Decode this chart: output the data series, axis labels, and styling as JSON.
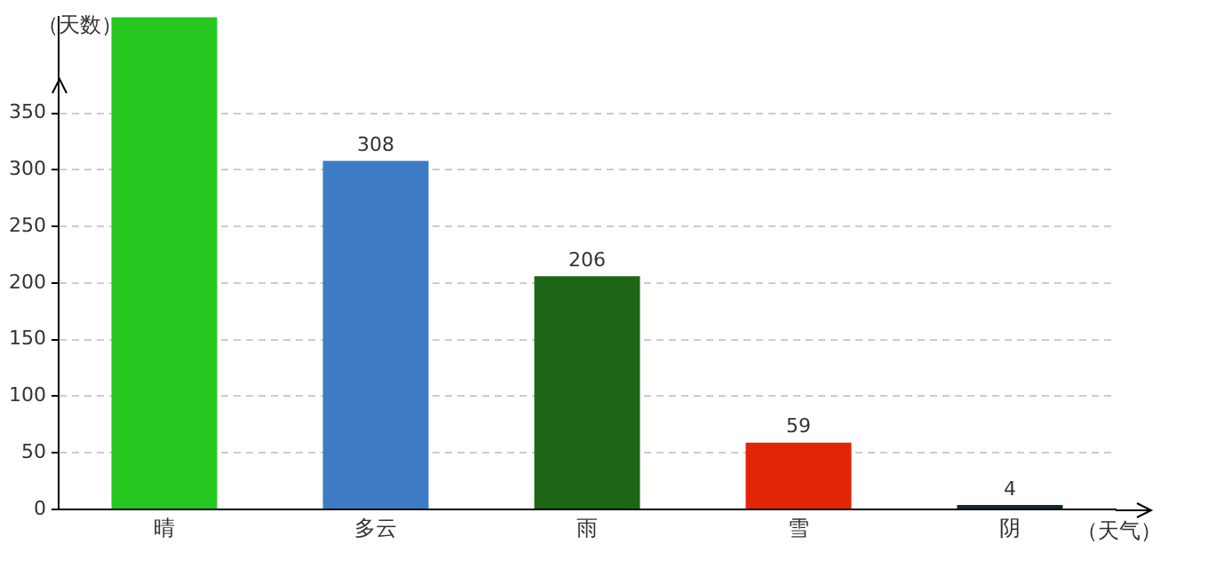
{
  "chart_data": {
    "type": "bar",
    "xlabel": "（天气）",
    "ylabel": "（天数）",
    "categories": [
      "晴",
      "多云",
      "雨",
      "雪",
      "阴"
    ],
    "values": [
      435,
      308,
      206,
      59,
      4
    ],
    "colors": [
      "#26c81f",
      "#3d7cc4",
      "#1e6617",
      "#e32507",
      "#0e2a3a"
    ],
    "value_labels": [
      null,
      "308",
      "206",
      "59",
      "4"
    ],
    "ylim": [
      0,
      435
    ],
    "yticks": [
      0,
      50,
      100,
      150,
      200,
      250,
      300,
      350
    ],
    "grid": "y",
    "legend": false
  }
}
